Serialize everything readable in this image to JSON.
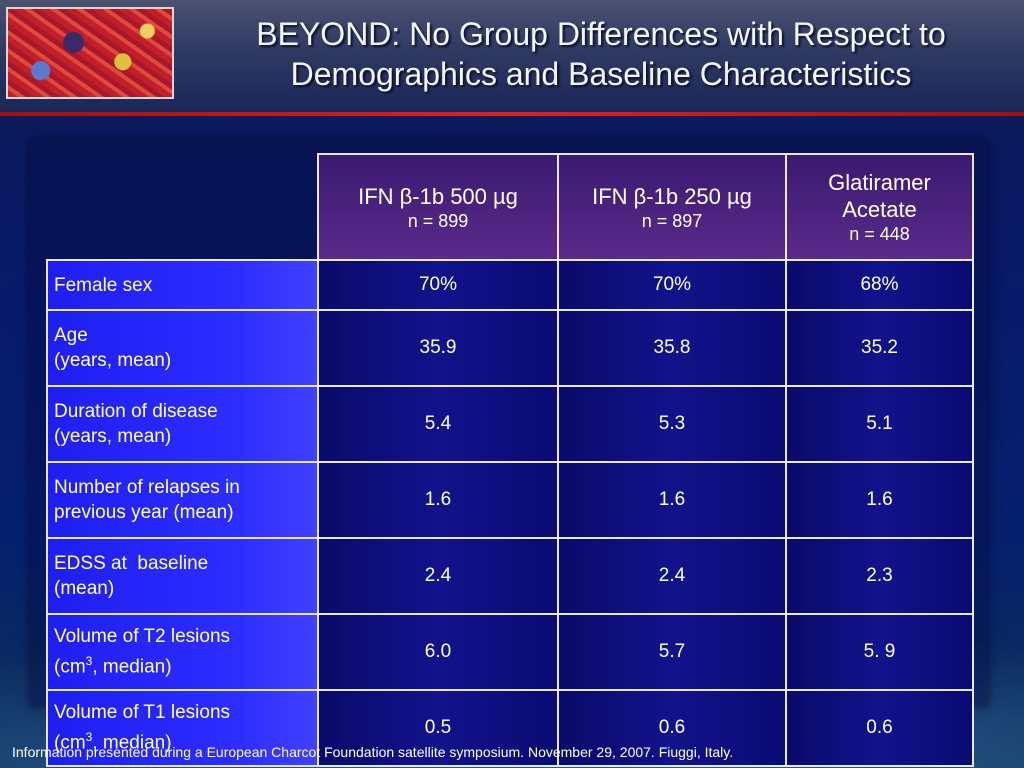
{
  "slide": {
    "title_line1": "BEYOND: No Group Differences with Respect to",
    "title_line2": "Demographics and Baseline Characteristics",
    "footnote": "Information presented during a European Charcot Foundation satellite symposium. November 29, 2007. Fiuggi, Italy."
  },
  "table": {
    "columns": [
      {
        "name": "IFN β-1b 500 µg",
        "n": "n = 899"
      },
      {
        "name": "IFN β-1b 250 µg",
        "n": "n = 897"
      },
      {
        "name_line1": "Glatiramer",
        "name_line2": "Acetate",
        "n": "n = 448"
      }
    ],
    "rows": [
      {
        "label_line1": "Female sex",
        "label_line2": "",
        "values": [
          "70%",
          "70%",
          "68%"
        ]
      },
      {
        "label_line1": "Age",
        "label_line2": "(years, mean)",
        "values": [
          "35.9",
          "35.8",
          "35.2"
        ]
      },
      {
        "label_line1": "Duration of disease",
        "label_line2": "(years, mean)",
        "values": [
          "5.4",
          "5.3",
          "5.1"
        ]
      },
      {
        "label_line1": "Number of relapses in",
        "label_line2": "previous year (mean)",
        "values": [
          "1.6",
          "1.6",
          "1.6"
        ]
      },
      {
        "label_line1": "EDSS at  baseline",
        "label_line2": "(mean)",
        "values": [
          "2.4",
          "2.4",
          "2.3"
        ]
      },
      {
        "label_line1": "Volume of T2 lesions",
        "label_pre": "(cm",
        "label_sup": "3",
        "label_post": ", median)",
        "values": [
          "6.0",
          "5.7",
          "5. 9"
        ]
      },
      {
        "label_line1": "Volume of T1 lesions",
        "label_pre": "(cm",
        "label_sup": "3",
        "label_post": ", median)",
        "values": [
          "0.5",
          "0.6",
          "0.6"
        ]
      }
    ]
  }
}
